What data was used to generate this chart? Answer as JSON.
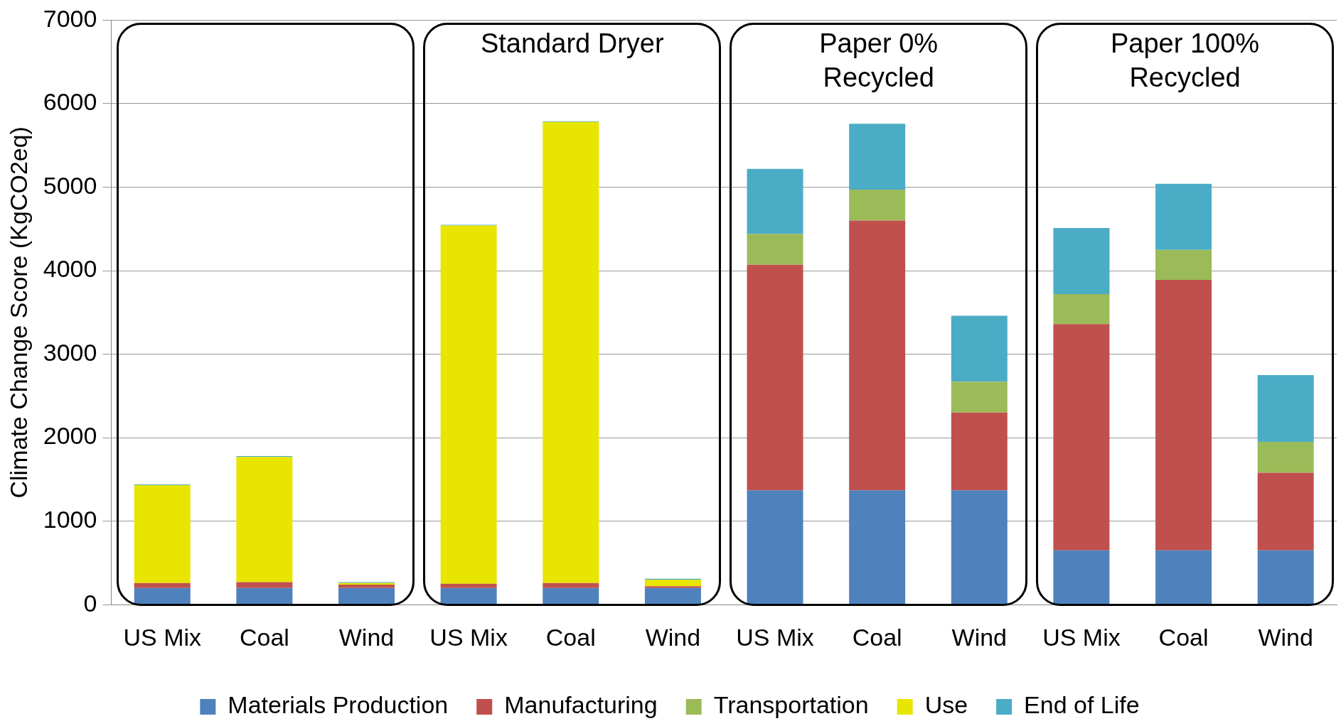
{
  "chart_data": {
    "type": "bar",
    "stacked": true,
    "ylabel": "Climate Change Score (KgCO2eq)",
    "categories": [
      "US Mix",
      "Coal",
      "Wind",
      "US Mix",
      "Coal",
      "Wind",
      "US Mix",
      "Coal",
      "Wind",
      "US Mix",
      "Coal",
      "Wind"
    ],
    "series": [
      {
        "name": "Materials Production",
        "color": "#4f81bd",
        "values": [
          200,
          200,
          200,
          200,
          200,
          200,
          1370,
          1370,
          1370,
          650,
          650,
          650
        ]
      },
      {
        "name": "Manufacturing",
        "color": "#c0504d",
        "values": [
          60,
          70,
          40,
          50,
          60,
          20,
          2700,
          3230,
          930,
          2710,
          3240,
          930
        ]
      },
      {
        "name": "Transportation",
        "color": "#9bbb59",
        "values": [
          null,
          null,
          null,
          null,
          null,
          null,
          370,
          370,
          370,
          360,
          360,
          370
        ]
      },
      {
        "name": "Use",
        "color": "#e8e600",
        "values": [
          1170,
          1500,
          20,
          4290,
          5520,
          80,
          0,
          0,
          0,
          0,
          0,
          0
        ]
      },
      {
        "name": "End of Life",
        "color": "#4bacc6",
        "values": [
          10,
          10,
          10,
          10,
          10,
          10,
          780,
          790,
          790,
          790,
          790,
          800
        ]
      }
    ],
    "ylim": [
      0,
      7000
    ],
    "yticks": [
      0,
      1000,
      2000,
      3000,
      4000,
      5000,
      6000,
      7000
    ],
    "grid": "y",
    "legend": "bottom",
    "annotations": [
      "Standard Dryer",
      "Paper 0%\nRecycled",
      "Paper 100%\nRecycled"
    ]
  }
}
